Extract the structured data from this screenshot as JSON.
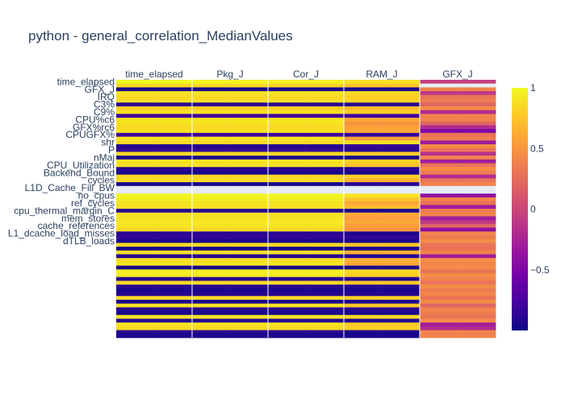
{
  "chart_data": {
    "type": "heatmap",
    "title": "python - general_correlation_MedianValues",
    "columns": [
      "time_elapsed",
      "Pkg_J",
      "Cor_J",
      "RAM_J",
      "GFX_J"
    ],
    "row_labels_shown": [
      "time_elapsed",
      "GFX_J",
      "IRQ",
      "C3%",
      "C9%",
      "CPU%c6",
      "GFX%rc6",
      "CPUGFX%",
      "shr",
      "P",
      "nMaj",
      "CPU_Utilization",
      "Backend_Bound",
      "cycles",
      "L1D_Cache_Fill_BW",
      "no_cpus",
      "ref_cycles",
      "cpu_thermal_margin_C",
      "mem_stores",
      "cache_references",
      "L1_dcache_load_misses",
      "dTLB_loads"
    ],
    "label_every": 2,
    "zlim": [
      -1,
      1
    ],
    "colorbar_ticks": [
      1,
      0.5,
      0,
      -0.5
    ],
    "colorbar_tick_labels": [
      "1",
      "0.5",
      "0",
      "−0.5"
    ],
    "colorscale": [
      "#0d0887",
      "#46039f",
      "#7201a8",
      "#9c179e",
      "#bd3786",
      "#d8576b",
      "#ed7953",
      "#fb9f3a",
      "#fdca26",
      "#f0f921"
    ],
    "missing_color": "#e5ecf6",
    "values": [
      [
        1,
        0.97,
        0.95,
        0.88,
        -0.05
      ],
      [
        0.85,
        0.85,
        0.82,
        0.75,
        null
      ],
      [
        -0.95,
        -0.95,
        -0.95,
        -0.95,
        0.4
      ],
      [
        0.9,
        0.9,
        0.9,
        0.85,
        -0.1
      ],
      [
        0.85,
        0.85,
        0.85,
        0.8,
        0.3
      ],
      [
        0.88,
        0.88,
        0.88,
        0.82,
        0.35
      ],
      [
        -0.9,
        -0.9,
        -0.9,
        -0.9,
        0.2
      ],
      [
        0.8,
        0.8,
        0.8,
        0.7,
        0.45
      ],
      [
        0.88,
        0.88,
        0.88,
        0.8,
        -0.2
      ],
      [
        -0.8,
        -0.8,
        -0.8,
        -0.8,
        0.4
      ],
      [
        0.9,
        0.9,
        0.9,
        0.6,
        0.4
      ],
      [
        0.9,
        0.9,
        0.9,
        0.5,
        0.2
      ],
      [
        0.85,
        0.85,
        0.85,
        0.55,
        -0.2
      ],
      [
        0.9,
        0.9,
        0.9,
        0.6,
        -0.5
      ],
      [
        -0.8,
        -0.8,
        -0.8,
        -0.85,
        0.3
      ],
      [
        0.9,
        0.9,
        0.9,
        0.55,
        0.35
      ],
      [
        0.85,
        0.85,
        0.85,
        0.9,
        -0.3
      ],
      [
        -0.9,
        -0.9,
        -0.9,
        -0.85,
        0.45
      ],
      [
        -0.85,
        -0.85,
        -0.85,
        -0.9,
        0.3
      ],
      [
        0.85,
        0.85,
        0.85,
        0.8,
        -0.15
      ],
      [
        -0.95,
        -0.95,
        -0.95,
        -0.95,
        0.4
      ],
      [
        0.9,
        0.9,
        0.9,
        0.8,
        -0.3
      ],
      [
        0.88,
        0.88,
        0.88,
        0.75,
        0.3
      ],
      [
        -0.9,
        -0.9,
        -0.9,
        -0.9,
        0.45
      ],
      [
        -0.95,
        -0.95,
        -0.95,
        -0.95,
        0.35
      ],
      [
        0.85,
        0.85,
        0.85,
        0.8,
        -0.2
      ],
      [
        0.85,
        0.85,
        0.85,
        0.65,
        0.3
      ],
      [
        -0.95,
        -0.95,
        -0.95,
        -0.9,
        0.4
      ],
      [
        null,
        null,
        null,
        null,
        null
      ],
      [
        null,
        null,
        null,
        null,
        null
      ],
      [
        0.98,
        0.98,
        0.98,
        0.9,
        -0.4
      ],
      [
        0.95,
        0.95,
        0.95,
        0.75,
        0.4
      ],
      [
        0.9,
        0.9,
        0.9,
        0.6,
        0.3
      ],
      [
        0.88,
        0.88,
        0.88,
        0.7,
        -0.3
      ],
      [
        -0.9,
        -0.9,
        -0.9,
        -0.95,
        0.35
      ],
      [
        0.88,
        0.88,
        0.88,
        0.6,
        0.4
      ],
      [
        0.9,
        0.9,
        0.9,
        0.55,
        -0.3
      ],
      [
        0.92,
        0.92,
        0.92,
        0.6,
        -0.1
      ],
      [
        0.9,
        0.9,
        0.9,
        0.55,
        0.2
      ],
      [
        0.85,
        0.85,
        0.85,
        0.5,
        -0.4
      ],
      [
        -0.9,
        -0.9,
        -0.9,
        -0.95,
        0.4
      ],
      [
        -0.85,
        -0.85,
        -0.85,
        -0.85,
        0.35
      ],
      [
        -0.95,
        -0.95,
        -0.95,
        -0.95,
        0.45
      ],
      [
        0.85,
        0.85,
        0.85,
        0.75,
        0.3
      ],
      [
        -0.95,
        -0.95,
        -0.95,
        -0.95,
        0.3
      ],
      [
        0.88,
        0.88,
        0.88,
        0.65,
        0.4
      ],
      [
        -0.9,
        -0.9,
        -0.9,
        -0.9,
        -0.3
      ],
      [
        0.88,
        0.88,
        0.88,
        0.65,
        0.45
      ],
      [
        0.9,
        0.9,
        0.9,
        0.6,
        0.4
      ],
      [
        -0.95,
        -0.95,
        -0.95,
        -0.95,
        0.45
      ],
      [
        0.95,
        0.95,
        0.95,
        0.85,
        0.3
      ],
      [
        0.93,
        0.93,
        0.93,
        0.8,
        0.45
      ],
      [
        -0.9,
        -0.9,
        -0.9,
        -0.9,
        0.4
      ],
      [
        0.85,
        0.85,
        0.85,
        0.75,
        0.3
      ],
      [
        -0.9,
        -0.9,
        -0.9,
        -0.9,
        0.45
      ],
      [
        -0.95,
        -0.95,
        -0.95,
        -0.95,
        0.35
      ],
      [
        -0.9,
        -0.9,
        -0.9,
        -0.9,
        0.4
      ],
      [
        0.85,
        0.85,
        0.85,
        0.8,
        0.3
      ],
      [
        -0.95,
        -0.95,
        -0.95,
        -0.95,
        0.45
      ],
      [
        0.88,
        0.88,
        0.88,
        0.75,
        0.2
      ],
      [
        -0.9,
        -0.9,
        -0.9,
        -0.9,
        0.4
      ],
      [
        -0.95,
        -0.95,
        -0.95,
        -0.95,
        0.35
      ],
      [
        0.9,
        0.9,
        0.9,
        0.85,
        0.3
      ],
      [
        -0.9,
        -0.9,
        -0.9,
        -0.9,
        0.45
      ],
      [
        0.9,
        0.9,
        0.9,
        0.8,
        -0.3
      ],
      [
        0.85,
        0.85,
        0.85,
        0.8,
        -0.2
      ],
      [
        -0.9,
        -0.9,
        -0.9,
        -0.95,
        0.4
      ],
      [
        -0.95,
        -0.95,
        -0.95,
        -0.95,
        0.4
      ]
    ]
  }
}
